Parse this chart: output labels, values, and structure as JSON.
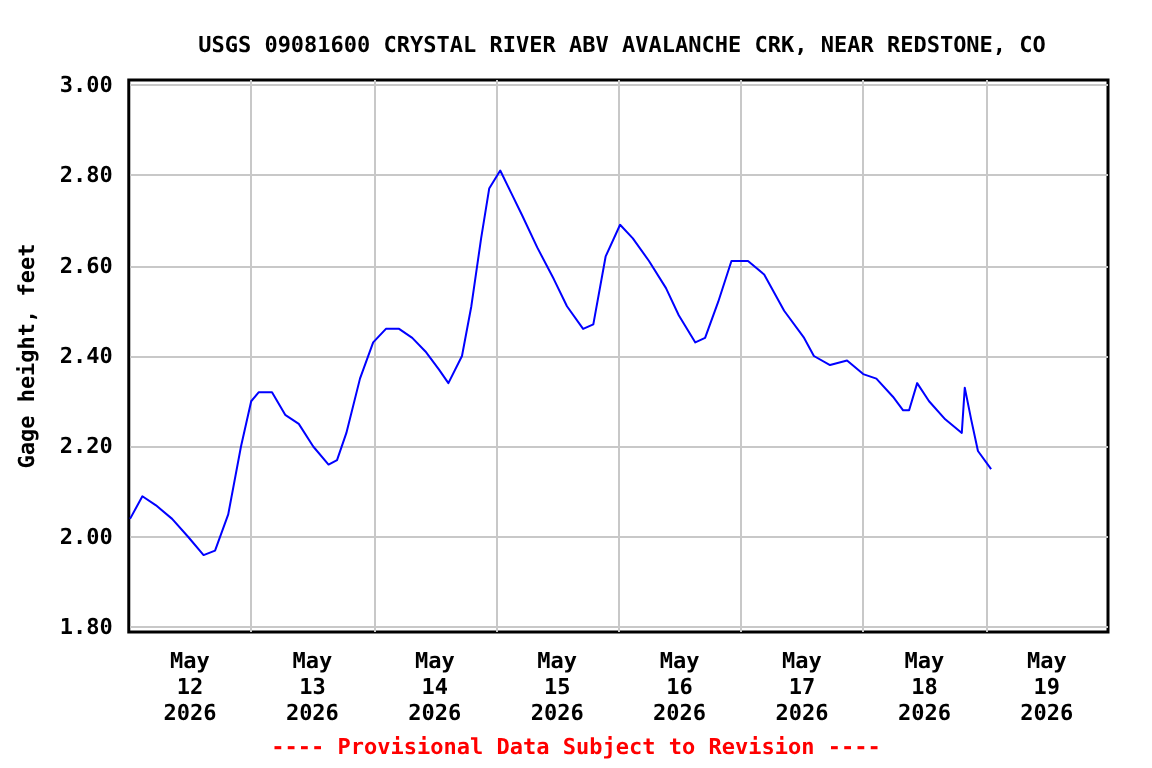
{
  "chart_data": {
    "type": "line",
    "title": "USGS 09081600 CRYSTAL RIVER ABV AVALANCHE CRK, NEAR REDSTONE, CO",
    "ylabel": "Gage height, feet",
    "annotations": [
      "---- Provisional Data Subject to Revision ----"
    ],
    "xlim": [
      "2026-05-12T00:00",
      "2026-05-20T00:00"
    ],
    "xticks": [
      {
        "value": "2026-05-12T12:00",
        "label": "May\n12\n2026"
      },
      {
        "value": "2026-05-13T00:00",
        "label": null
      },
      {
        "value": "2026-05-13T12:00",
        "label": "May\n13\n2026"
      },
      {
        "value": "2026-05-14T00:00",
        "label": null
      },
      {
        "value": "2026-05-14T12:00",
        "label": "May\n14\n2026"
      },
      {
        "value": "2026-05-15T00:00",
        "label": null
      },
      {
        "value": "2026-05-15T12:00",
        "label": "May\n15\n2026"
      },
      {
        "value": "2026-05-16T00:00",
        "label": null
      },
      {
        "value": "2026-05-16T12:00",
        "label": "May\n16\n2026"
      },
      {
        "value": "2026-05-17T00:00",
        "label": null
      },
      {
        "value": "2026-05-17T12:00",
        "label": "May\n17\n2026"
      },
      {
        "value": "2026-05-18T00:00",
        "label": null
      },
      {
        "value": "2026-05-18T12:00",
        "label": "May\n18\n2026"
      },
      {
        "value": "2026-05-19T00:00",
        "label": null
      },
      {
        "value": "2026-05-19T12:00",
        "label": "May\n19\n2026"
      }
    ],
    "ylim": [
      1.79,
      3.01
    ],
    "yticks": [
      {
        "value": 1.8,
        "label": "1.80"
      },
      {
        "value": 2.0,
        "label": "2.00"
      },
      {
        "value": 2.2,
        "label": "2.20"
      },
      {
        "value": 2.4,
        "label": "2.40"
      },
      {
        "value": 2.6,
        "label": "2.60"
      },
      {
        "value": 2.8,
        "label": "2.80"
      },
      {
        "value": 3.0,
        "label": "3.00"
      }
    ],
    "grid": true,
    "marker": "none",
    "line_style": "solid",
    "x": [
      "2026-05-12T00:15",
      "2026-05-12T02:40",
      "2026-05-12T05:20",
      "2026-05-12T08:30",
      "2026-05-12T11:40",
      "2026-05-12T14:40",
      "2026-05-12T16:55",
      "2026-05-12T19:30",
      "2026-05-12T22:00",
      "2026-05-13T00:00",
      "2026-05-13T01:30",
      "2026-05-13T04:05",
      "2026-05-13T06:40",
      "2026-05-13T09:20",
      "2026-05-13T12:10",
      "2026-05-13T15:10",
      "2026-05-13T16:50",
      "2026-05-13T18:40",
      "2026-05-13T21:20",
      "2026-05-13T23:55",
      "2026-05-14T02:25",
      "2026-05-14T05:00",
      "2026-05-14T07:35",
      "2026-05-14T10:10",
      "2026-05-14T12:50",
      "2026-05-14T14:40",
      "2026-05-14T17:20",
      "2026-05-14T19:10",
      "2026-05-14T21:05",
      "2026-05-14T22:40",
      "2026-05-15T00:50",
      "2026-05-15T03:00",
      "2026-05-15T05:10",
      "2026-05-15T08:05",
      "2026-05-15T11:20",
      "2026-05-15T13:55",
      "2026-05-15T17:05",
      "2026-05-15T19:05",
      "2026-05-15T21:30",
      "2026-05-16T00:20",
      "2026-05-16T02:50",
      "2026-05-16T06:00",
      "2026-05-16T09:20",
      "2026-05-16T11:50",
      "2026-05-16T15:05",
      "2026-05-16T17:00",
      "2026-05-16T19:35",
      "2026-05-16T22:10",
      "2026-05-17T01:25",
      "2026-05-17T04:35",
      "2026-05-17T08:30",
      "2026-05-17T12:25",
      "2026-05-17T14:20",
      "2026-05-17T17:30",
      "2026-05-17T20:50",
      "2026-05-18T00:00",
      "2026-05-18T02:35",
      "2026-05-18T05:50",
      "2026-05-18T07:50",
      "2026-05-18T09:00",
      "2026-05-18T10:35",
      "2026-05-18T12:55",
      "2026-05-18T16:05",
      "2026-05-18T19:20",
      "2026-05-18T19:55",
      "2026-05-18T21:10",
      "2026-05-18T22:30",
      "2026-05-19T01:05"
    ],
    "series": [
      {
        "color": "#0000ff",
        "values": [
          2.04,
          2.09,
          2.07,
          2.04,
          2.0,
          1.96,
          1.97,
          2.05,
          2.2,
          2.3,
          2.32,
          2.32,
          2.27,
          2.25,
          2.2,
          2.16,
          2.17,
          2.23,
          2.35,
          2.43,
          2.46,
          2.46,
          2.44,
          2.41,
          2.37,
          2.34,
          2.4,
          2.51,
          2.66,
          2.77,
          2.81,
          2.76,
          2.71,
          2.64,
          2.57,
          2.51,
          2.46,
          2.47,
          2.62,
          2.69,
          2.66,
          2.61,
          2.55,
          2.49,
          2.43,
          2.44,
          2.52,
          2.61,
          2.61,
          2.58,
          2.5,
          2.44,
          2.4,
          2.38,
          2.39,
          2.36,
          2.35,
          2.31,
          2.28,
          2.28,
          2.34,
          2.3,
          2.26,
          2.23,
          2.33,
          2.26,
          2.19,
          2.15
        ]
      }
    ]
  }
}
